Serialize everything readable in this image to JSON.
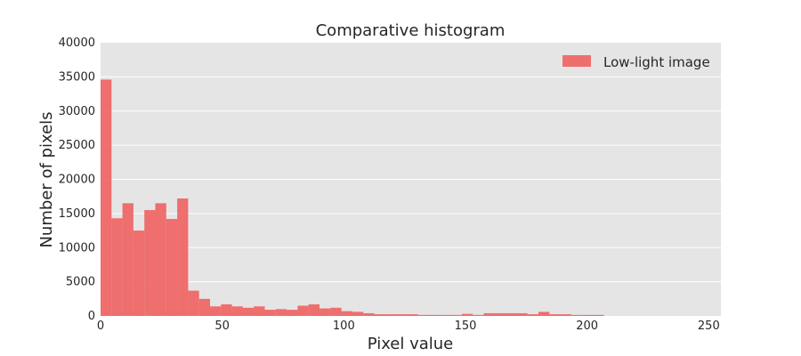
{
  "chart_data": {
    "type": "bar",
    "title": "Comparative histogram",
    "xlabel": "Pixel value",
    "ylabel": "Number of pixels",
    "xlim": [
      0,
      255
    ],
    "ylim": [
      0,
      40000
    ],
    "xticks": [
      0,
      50,
      100,
      150,
      200,
      250
    ],
    "yticks": [
      0,
      5000,
      10000,
      15000,
      20000,
      25000,
      30000,
      35000,
      40000
    ],
    "grid": true,
    "legend_position": "top-right",
    "bar_color": "#f06060",
    "background_color": "#e5e5e5",
    "series": [
      {
        "name": "Low-light image",
        "bin_width": 4.5,
        "bin_starts": [
          0,
          4.5,
          9,
          13.5,
          18,
          22.5,
          27,
          31.5,
          36,
          40.5,
          45,
          49.5,
          54,
          58.5,
          63,
          67.5,
          72,
          76.5,
          81,
          85.5,
          90,
          94.5,
          99,
          103.5,
          108,
          112.5,
          117,
          121.5,
          126,
          130.5,
          135,
          139.5,
          144,
          148.5,
          153,
          157.5,
          162,
          166.5,
          171,
          175.5,
          180,
          184.5,
          189,
          193.5,
          198,
          202.5
        ],
        "values": [
          34600,
          14300,
          16500,
          12500,
          15500,
          16500,
          14200,
          17200,
          3700,
          2500,
          1400,
          1700,
          1400,
          1200,
          1400,
          900,
          1000,
          900,
          1500,
          1700,
          1100,
          1200,
          700,
          600,
          400,
          250,
          250,
          250,
          250,
          150,
          150,
          150,
          150,
          300,
          150,
          400,
          400,
          400,
          400,
          250,
          600,
          250,
          250,
          150,
          150,
          150
        ]
      }
    ]
  }
}
